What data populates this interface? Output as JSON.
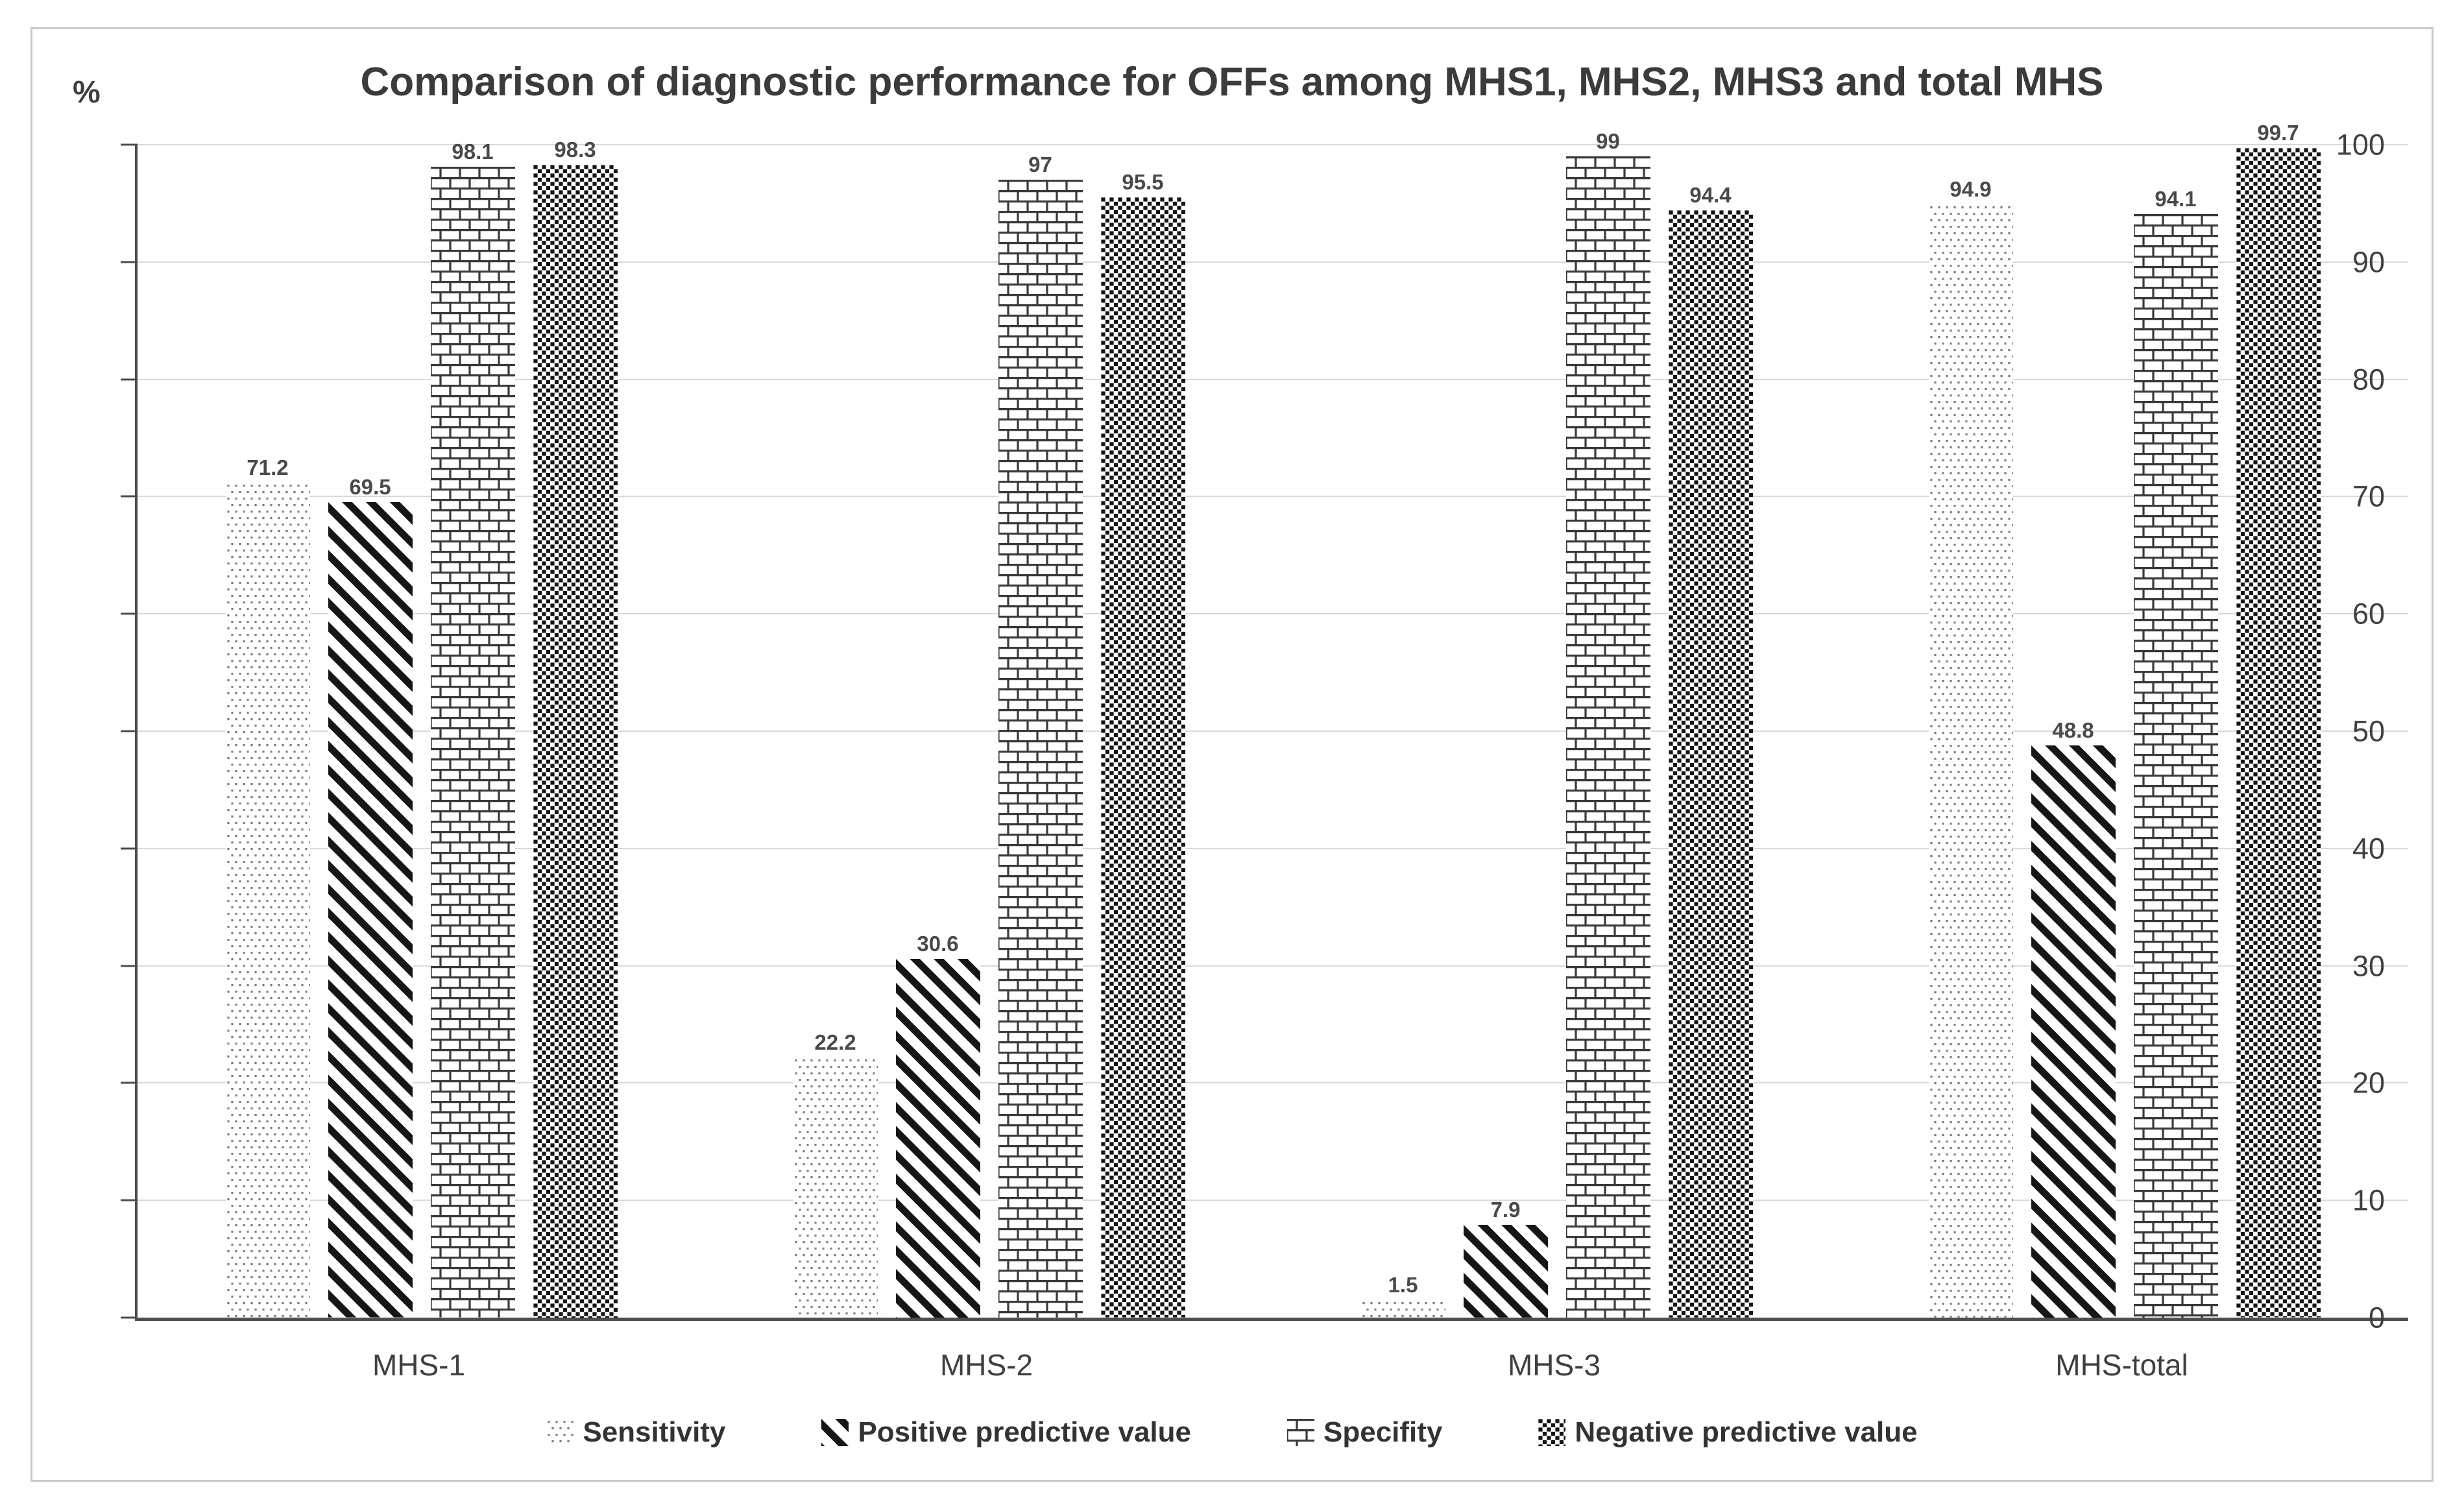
{
  "chart_data": {
    "type": "bar",
    "title": "Comparison of diagnostic performance for OFFs among MHS1, MHS2, MHS3 and total MHS",
    "y_unit": "%",
    "xlabel": "",
    "ylabel": "%",
    "ylim": [
      0,
      100
    ],
    "y_ticks": [
      0,
      10,
      20,
      30,
      40,
      50,
      60,
      70,
      80,
      90,
      100
    ],
    "grid": true,
    "legend_position": "bottom",
    "categories": [
      "MHS-1",
      "MHS-2",
      "MHS-3",
      "MHS-total"
    ],
    "series": [
      {
        "name": "Sensitivity",
        "pattern": "dots",
        "values": [
          71.2,
          22.2,
          1.5,
          94.9
        ]
      },
      {
        "name": "Positive predictive value",
        "pattern": "diag",
        "values": [
          69.5,
          30.6,
          7.9,
          48.8
        ]
      },
      {
        "name": "Specifity",
        "pattern": "brick",
        "values": [
          98.1,
          97,
          99,
          94.1
        ]
      },
      {
        "name": "Negative predictive value",
        "pattern": "check",
        "values": [
          98.3,
          95.5,
          94.4,
          99.7
        ]
      }
    ],
    "colors": {
      "frame_border": "#c9c9c9",
      "gridline": "#d9d9d9",
      "axis": "#4d4d4d",
      "text": "#3f3f3f",
      "pattern_ink": "#161616"
    }
  }
}
